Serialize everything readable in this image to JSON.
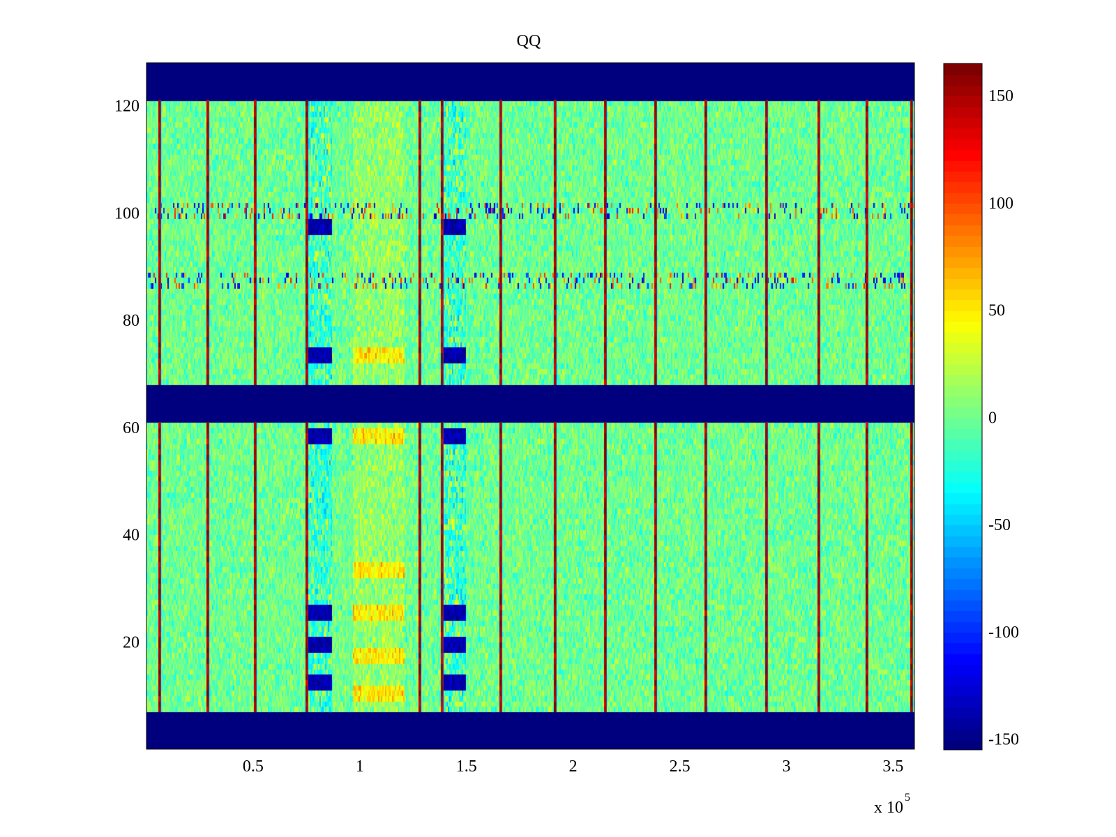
{
  "chart_data": {
    "type": "heatmap",
    "title": "QQ",
    "xlabel": "",
    "ylabel": "",
    "x_multiplier_label": "x 10",
    "x_multiplier_exponent": "5",
    "xlim": [
      0,
      360000
    ],
    "ylim": [
      0,
      128
    ],
    "x_ticks": [
      {
        "value": 50000,
        "label": "0.5"
      },
      {
        "value": 100000,
        "label": "1"
      },
      {
        "value": 150000,
        "label": "1.5"
      },
      {
        "value": 200000,
        "label": "2"
      },
      {
        "value": 250000,
        "label": "2.5"
      },
      {
        "value": 300000,
        "label": "3"
      },
      {
        "value": 350000,
        "label": "3.5"
      }
    ],
    "y_ticks": [
      {
        "value": 20,
        "label": "20"
      },
      {
        "value": 40,
        "label": "40"
      },
      {
        "value": 60,
        "label": "60"
      },
      {
        "value": 80,
        "label": "80"
      },
      {
        "value": 100,
        "label": "100"
      },
      {
        "value": 120,
        "label": "120"
      }
    ],
    "colorbar": {
      "range": [
        -155,
        165
      ],
      "colormap": "jet",
      "ticks": [
        {
          "value": 150,
          "label": "150"
        },
        {
          "value": 100,
          "label": "100"
        },
        {
          "value": 50,
          "label": "50"
        },
        {
          "value": 0,
          "label": "0"
        },
        {
          "value": -50,
          "label": "-50"
        },
        {
          "value": -100,
          "label": "-100"
        },
        {
          "value": -150,
          "label": "-150"
        }
      ]
    },
    "masked_row_bands": [
      [
        0,
        7
      ],
      [
        61,
        68
      ],
      [
        121,
        128
      ]
    ],
    "masked_value": -155,
    "background_mean": 0,
    "vertical_high_lines_x": [
      6000,
      28500,
      51000,
      75000,
      128000,
      138500,
      166000,
      191500,
      215000,
      238500,
      262000,
      290500,
      315000,
      337500,
      358500
    ],
    "low_value_column_bands_x": [
      [
        76000,
        87000
      ],
      [
        139000,
        150000
      ]
    ],
    "low_value_rows": [
      97,
      73,
      58,
      25,
      19,
      12
    ],
    "high_value_column_bands_x": [
      [
        97000,
        121000
      ]
    ],
    "high_value_rows": [
      73,
      58,
      33,
      25,
      17,
      10
    ],
    "noisy_row_y": [
      100,
      87
    ]
  }
}
